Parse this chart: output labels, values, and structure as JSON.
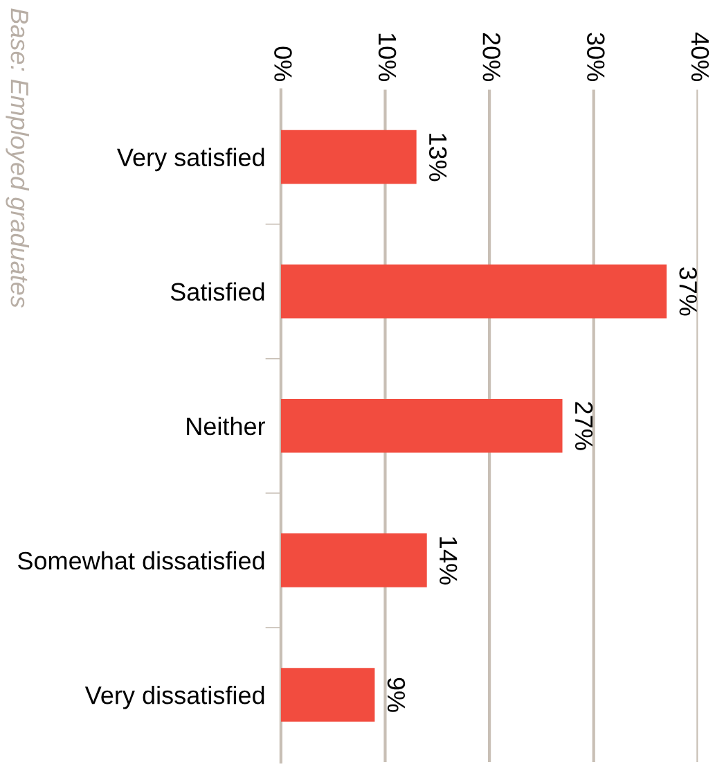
{
  "chart_data": {
    "type": "bar",
    "orientation": "horizontal",
    "categories": [
      "Very satisfied",
      "Satisfied",
      "Neither",
      "Somewhat dissatisfied",
      "Very dissatisfied"
    ],
    "values": [
      13,
      37,
      27,
      14,
      9
    ],
    "color": "#f24c3f",
    "xlim": [
      0,
      40
    ],
    "xticks": [
      {
        "value": 0,
        "label": "0%"
      },
      {
        "value": 10,
        "label": "10%"
      },
      {
        "value": 20,
        "label": "20%"
      },
      {
        "value": 30,
        "label": "30%"
      },
      {
        "value": 40,
        "label": "40%"
      }
    ],
    "value_labels": [
      "13%",
      "37%",
      "27%",
      "14%",
      "9%"
    ],
    "grid": "x",
    "legend": false,
    "annotations": [
      "Base: Employed graduates"
    ]
  }
}
